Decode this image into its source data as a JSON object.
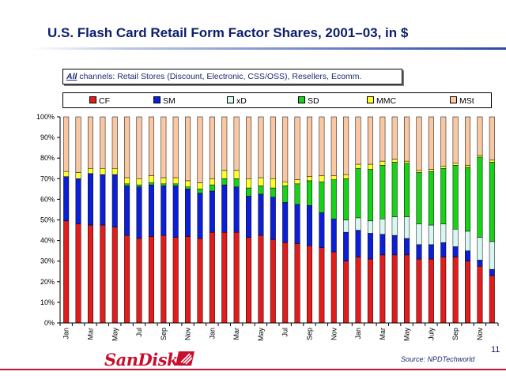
{
  "slide": {
    "title": "U.S. Flash Card Retail Form Factor Shares, 2001–03, in $",
    "channels_prefix": "All",
    "channels_rest": " channels: Retail Stores (Discount, Electronic, CSS/OSS), Resellers, Ecomm.",
    "logo_text": "SanDisk",
    "source": "Source: NPDTechworld",
    "page_number": "11"
  },
  "colors": {
    "CF": "#e11c1c",
    "SM": "#0a1fd6",
    "xD": "#d9f7f2",
    "SD": "#17d217",
    "MMC": "#ffff2a",
    "MSt": "#f9c7a2"
  },
  "chart_data": {
    "type": "bar",
    "stacked": true,
    "percent": true,
    "title": "",
    "xlabel": "",
    "ylabel": "",
    "ylim": [
      0,
      100
    ],
    "y_ticks": [
      "0%",
      "10%",
      "20%",
      "30%",
      "40%",
      "50%",
      "60%",
      "70%",
      "80%",
      "90%",
      "100%"
    ],
    "grid": false,
    "legend": "top",
    "categories": [
      "Jan",
      "Feb",
      "Mar",
      "Apr",
      "May",
      "Jun",
      "Jul",
      "Aug",
      "Sep",
      "Oct",
      "Nov",
      "Dec",
      "Jan",
      "Feb",
      "Mar",
      "Apr",
      "May",
      "Jun",
      "Jul",
      "Aug",
      "Sep",
      "Oct",
      "Nov",
      "Dec",
      "Jan",
      "Feb",
      "Mar",
      "Apr",
      "May",
      "Jun",
      "July",
      "Aug",
      "Sep",
      "Oct",
      "Nov",
      "Dec"
    ],
    "x_tick_labels": [
      "Jan",
      "",
      "Mar",
      "",
      "May",
      "",
      "Jul",
      "",
      "Sep",
      "",
      "Nov",
      "",
      "Jan",
      "",
      "Mar",
      "",
      "May",
      "",
      "Jul",
      "",
      "Sep",
      "",
      "Nov",
      "",
      "Jan",
      "",
      "Mar",
      "",
      "May",
      "",
      "July",
      "",
      "Sep",
      "",
      "Nov",
      ""
    ],
    "series": [
      {
        "name": "CF",
        "values": [
          49.5,
          48,
          47.5,
          47.5,
          46.5,
          42.5,
          41,
          42,
          42.5,
          41.5,
          42,
          41,
          44,
          44,
          44,
          41.5,
          42.5,
          40.5,
          39,
          38.5,
          37.5,
          36.5,
          34.5,
          30,
          32,
          31,
          33,
          33,
          33,
          31,
          31,
          32,
          32,
          30,
          27.5,
          23
        ]
      },
      {
        "name": "SM",
        "values": [
          21.5,
          22,
          25,
          24.5,
          25.5,
          24,
          25,
          25,
          24,
          25,
          23,
          22,
          20,
          23,
          22,
          20,
          20,
          20.5,
          19.5,
          19,
          19.5,
          17,
          16,
          14,
          13,
          12.5,
          10,
          9.5,
          8,
          7,
          7,
          7,
          5,
          5,
          3,
          3
        ]
      },
      {
        "name": "xD",
        "values": [
          0,
          0,
          0,
          0,
          0,
          0,
          0,
          0,
          0,
          0,
          0,
          0,
          0,
          0,
          0,
          0,
          0,
          0,
          0,
          0,
          0,
          0,
          0,
          6,
          6,
          6,
          7.5,
          9,
          10.5,
          10,
          9.5,
          9,
          8.5,
          9.5,
          11,
          13.5
        ]
      },
      {
        "name": "SD",
        "values": [
          0,
          0,
          0,
          0,
          0,
          1,
          1,
          1,
          1,
          1,
          1,
          2,
          3,
          3,
          4,
          4,
          4,
          4.5,
          8,
          10,
          12,
          15,
          19,
          20,
          24,
          25,
          26,
          26.5,
          26,
          25,
          26,
          27,
          31,
          31,
          39,
          38.5
        ]
      },
      {
        "name": "MMC",
        "values": [
          2.5,
          3,
          2.5,
          3,
          3,
          3,
          3,
          3.5,
          3,
          3,
          3,
          3,
          3,
          4,
          4,
          4.5,
          4,
          4.5,
          2,
          2,
          2,
          3,
          2,
          2,
          2,
          2.5,
          2,
          1.5,
          1,
          1,
          1,
          1,
          1,
          1,
          1,
          1
        ]
      },
      {
        "name": "MSt",
        "values": [
          26.5,
          27,
          25,
          25,
          25,
          29.5,
          30,
          28.5,
          29.5,
          29.5,
          31,
          32,
          30,
          26,
          26,
          30,
          29.5,
          30,
          31.5,
          30.5,
          29,
          28.5,
          28.5,
          28,
          23,
          23,
          21.5,
          20.5,
          21.5,
          26,
          25.5,
          24,
          22.5,
          23.5,
          18.5,
          21
        ]
      }
    ]
  }
}
